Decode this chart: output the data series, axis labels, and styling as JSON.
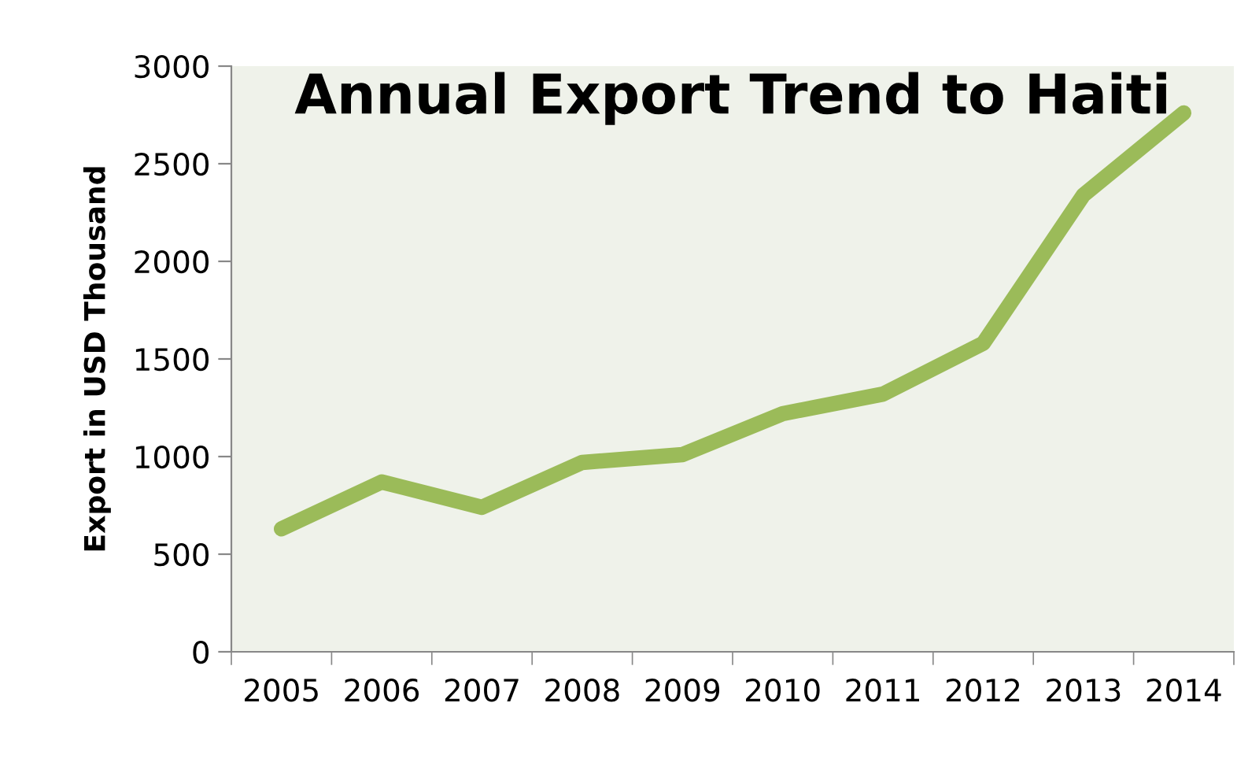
{
  "chart_data": {
    "type": "line",
    "title": "Annual Export Trend to Haiti",
    "ylabel": "Export in USD Thousand",
    "categories": [
      "2005",
      "2006",
      "2007",
      "2008",
      "2009",
      "2010",
      "2011",
      "2012",
      "2013",
      "2014"
    ],
    "series": [
      {
        "color": "#9bbb59",
        "values": [
          630,
          870,
          740,
          970,
          1010,
          1220,
          1320,
          1580,
          2340,
          2760
        ]
      }
    ],
    "ylim": [
      0,
      3000
    ],
    "yticks": [
      0,
      500,
      1000,
      1500,
      2000,
      2500,
      3000
    ],
    "grid": false,
    "legend": false,
    "marker": "none",
    "line_style": "solid"
  }
}
